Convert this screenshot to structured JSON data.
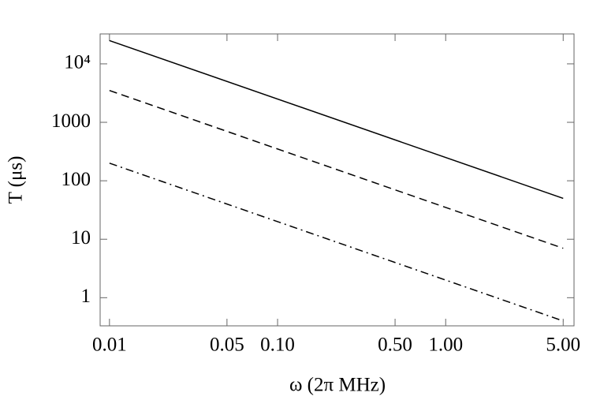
{
  "chart_data": {
    "type": "line",
    "x_label": "ω (2π MHz)",
    "y_label": "T (μs)",
    "x": [
      0.01,
      5
    ],
    "series": [
      {
        "color": "#000000",
        "dash": "solid",
        "values": [
          25000,
          50
        ]
      },
      {
        "color": "#000000",
        "dash": "dashed",
        "values": [
          3500,
          7
        ]
      },
      {
        "color": "#000000",
        "dash": "dashdot",
        "values": [
          200,
          0.4
        ]
      }
    ],
    "xscale": "log",
    "yscale": "log",
    "xlim": [
      0.0088,
      5.8
    ],
    "ylim": [
      0.33,
      32500
    ],
    "xticks": [
      0.01,
      0.05,
      {
        "value": 0.1,
        "label": "0.10"
      },
      {
        "value": 0.5,
        "label": "0.50"
      },
      {
        "value": 1,
        "label": "1.00"
      },
      {
        "value": 5,
        "label": "5.00"
      }
    ],
    "yticks": [
      1,
      10,
      100,
      1000,
      {
        "value": 10000,
        "label": "10⁴"
      }
    ],
    "grid": false
  }
}
